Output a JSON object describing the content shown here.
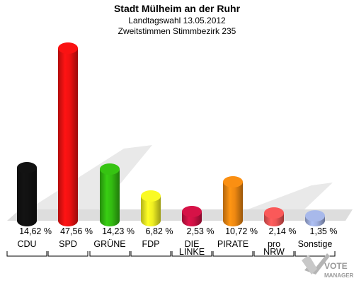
{
  "chart_data": {
    "type": "bar",
    "title": "Stadt Mülheim an der Ruhr",
    "subtitle_1": "Landtagswahl 13.05.2012",
    "subtitle_2": "Zweitstimmen Stimmbezirk 235",
    "categories": [
      "CDU",
      "SPD",
      "GRÜNE",
      "FDP",
      "DIE LINKE",
      "PIRATE",
      "pro NRW",
      "Sonstige"
    ],
    "category_lines": [
      [
        "CDU"
      ],
      [
        "SPD"
      ],
      [
        "GRÜNE"
      ],
      [
        "FDP"
      ],
      [
        "DIE",
        "LINKE"
      ],
      [
        "PIRATE"
      ],
      [
        "pro",
        "NRW"
      ],
      [
        "Sonstige"
      ]
    ],
    "values": [
      14.62,
      47.56,
      14.23,
      6.82,
      2.53,
      10.72,
      2.14,
      1.35
    ],
    "value_labels": [
      "14,62 %",
      "47,56 %",
      "14,23 %",
      "6,82 %",
      "2,53 %",
      "10,72 %",
      "2,14 %",
      "1,35 %"
    ],
    "colors": [
      "#111111",
      "#ee1111",
      "#33bb11",
      "#eeee22",
      "#cc1144",
      "#ee8811",
      "#ee5555",
      "#a0b0e0"
    ],
    "ylim": [
      0,
      50
    ],
    "grid": false,
    "legend": "none"
  },
  "branding": {
    "logo_line1": "VOTE",
    "logo_line2": "MANAGER"
  }
}
